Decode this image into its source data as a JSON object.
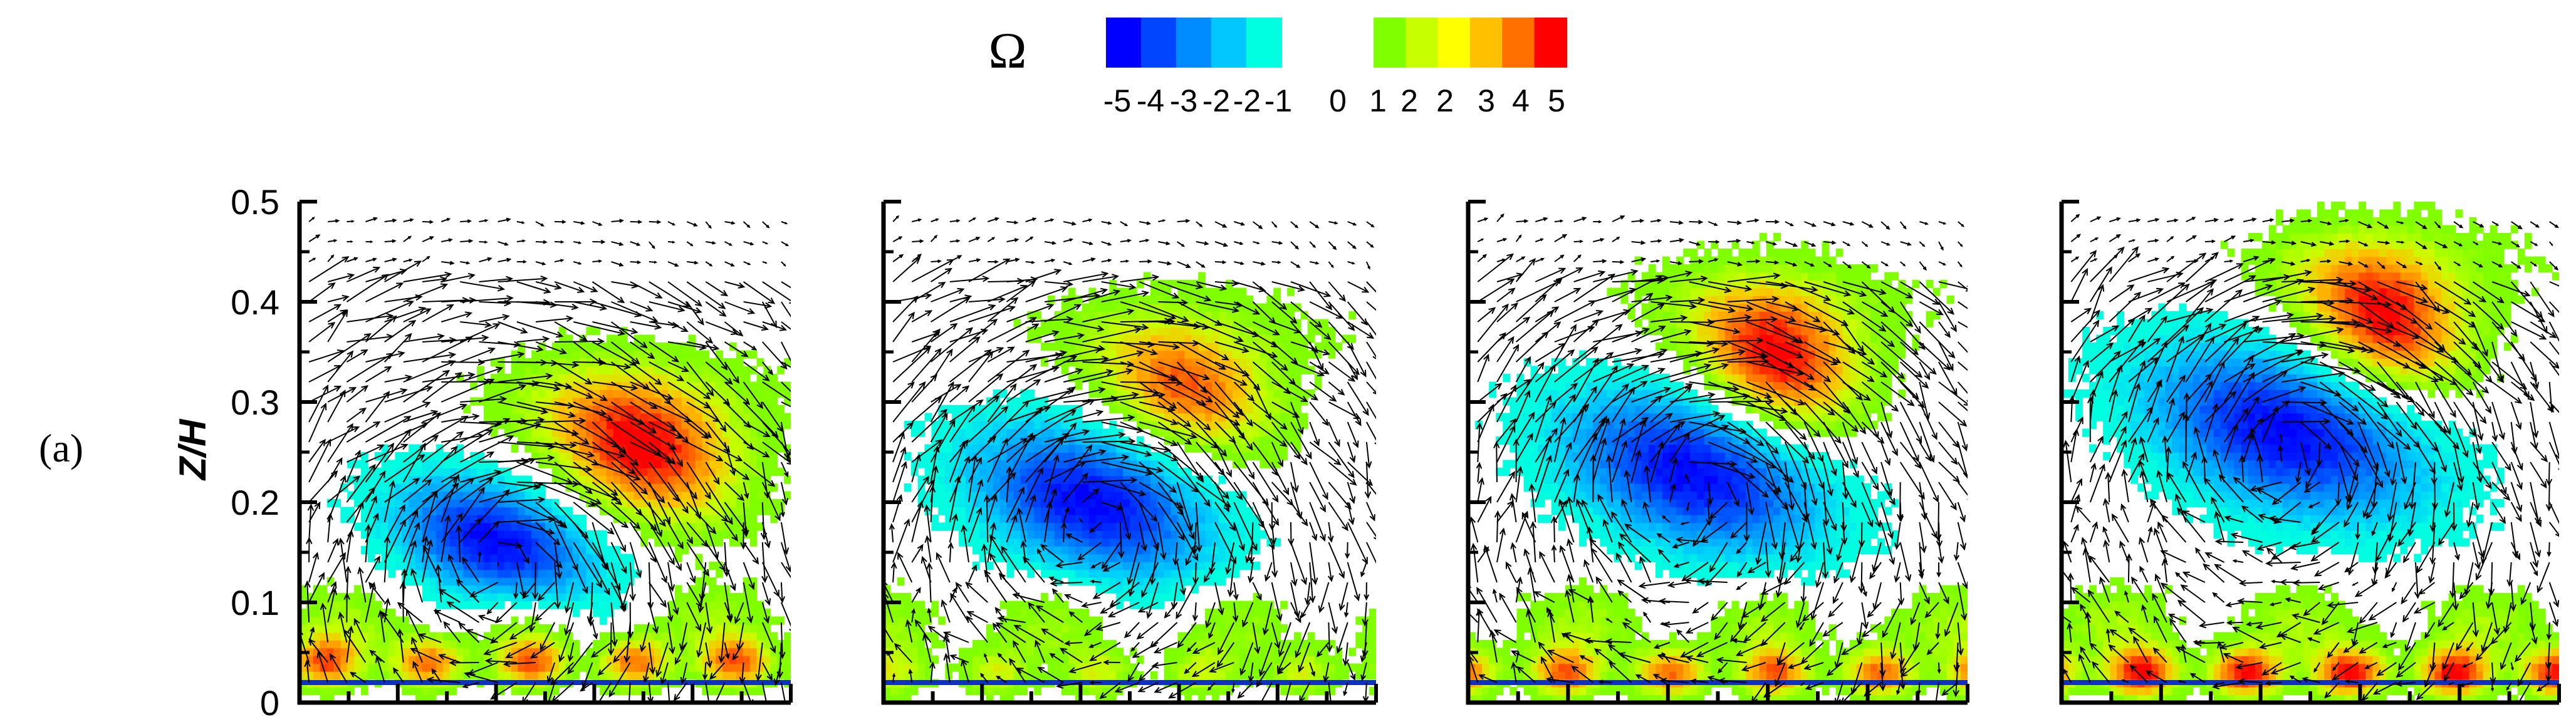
{
  "panel_label": "(a)",
  "colorbar": {
    "symbol": "Ω",
    "tick_labels": [
      "-5",
      "-4",
      "-3",
      "-2",
      "-2",
      "-1",
      "0",
      "1",
      "2",
      "2",
      "3",
      "4",
      "5"
    ],
    "negative_colors": [
      "#0000ff",
      "#0046ff",
      "#008cff",
      "#00c8ff",
      "#00ffe0"
    ],
    "positive_colors": [
      "#80ff00",
      "#c8ff00",
      "#ffff00",
      "#ffc000",
      "#ff7000",
      "#ff0000"
    ]
  },
  "axes": {
    "ylabel": "Z/H",
    "ytick_labels": [
      "0",
      "0.1",
      "0.2",
      "0.3",
      "0.4",
      "0.5"
    ],
    "ylim": [
      0,
      0.5
    ]
  },
  "chart_data": [
    {
      "type": "heatmap",
      "panel": 1,
      "ylabel": "Z/H",
      "ylim": [
        0,
        0.5
      ],
      "variable": "Ω",
      "zlim": [
        -5,
        5
      ],
      "features": [
        {
          "kind": "negative_vortex",
          "cx": 0.4,
          "cy": 0.16,
          "rx": 0.22,
          "ry": 0.065,
          "peak": -5
        },
        {
          "kind": "positive_vortex",
          "cx": 0.7,
          "cy": 0.25,
          "rx": 0.2,
          "ry": 0.07,
          "peak": 5
        },
        {
          "kind": "wall_shear_layer",
          "cy": 0.04,
          "peak": 4
        }
      ]
    },
    {
      "type": "heatmap",
      "panel": 2,
      "ylim": [
        0,
        0.5
      ],
      "variable": "Ω",
      "zlim": [
        -5,
        5
      ],
      "features": [
        {
          "kind": "negative_vortex",
          "cx": 0.42,
          "cy": 0.2,
          "rx": 0.26,
          "ry": 0.075,
          "peak": -5
        },
        {
          "kind": "positive_vortex",
          "cx": 0.62,
          "cy": 0.31,
          "rx": 0.18,
          "ry": 0.06,
          "peak": 4
        },
        {
          "kind": "wall_shear_layer",
          "cy": 0.03,
          "peak": 2
        }
      ]
    },
    {
      "type": "heatmap",
      "panel": 3,
      "ylim": [
        0,
        0.5
      ],
      "variable": "Ω",
      "zlim": [
        -5,
        5
      ],
      "features": [
        {
          "kind": "negative_vortex",
          "cx": 0.45,
          "cy": 0.23,
          "rx": 0.28,
          "ry": 0.08,
          "peak": -5
        },
        {
          "kind": "positive_vortex",
          "cx": 0.62,
          "cy": 0.34,
          "rx": 0.17,
          "ry": 0.07,
          "peak": 5
        },
        {
          "kind": "wall_shear_layer",
          "cy": 0.03,
          "peak": 4
        }
      ]
    },
    {
      "type": "heatmap",
      "panel": 4,
      "ylim": [
        0,
        0.5
      ],
      "variable": "Ω",
      "zlim": [
        -5,
        5
      ],
      "features": [
        {
          "kind": "negative_vortex",
          "cx": 0.45,
          "cy": 0.27,
          "rx": 0.3,
          "ry": 0.085,
          "peak": -5
        },
        {
          "kind": "positive_vortex",
          "cx": 0.65,
          "cy": 0.38,
          "rx": 0.17,
          "ry": 0.07,
          "peak": 5
        },
        {
          "kind": "wall_shear_layer",
          "cy": 0.03,
          "peak": 5
        }
      ]
    }
  ]
}
